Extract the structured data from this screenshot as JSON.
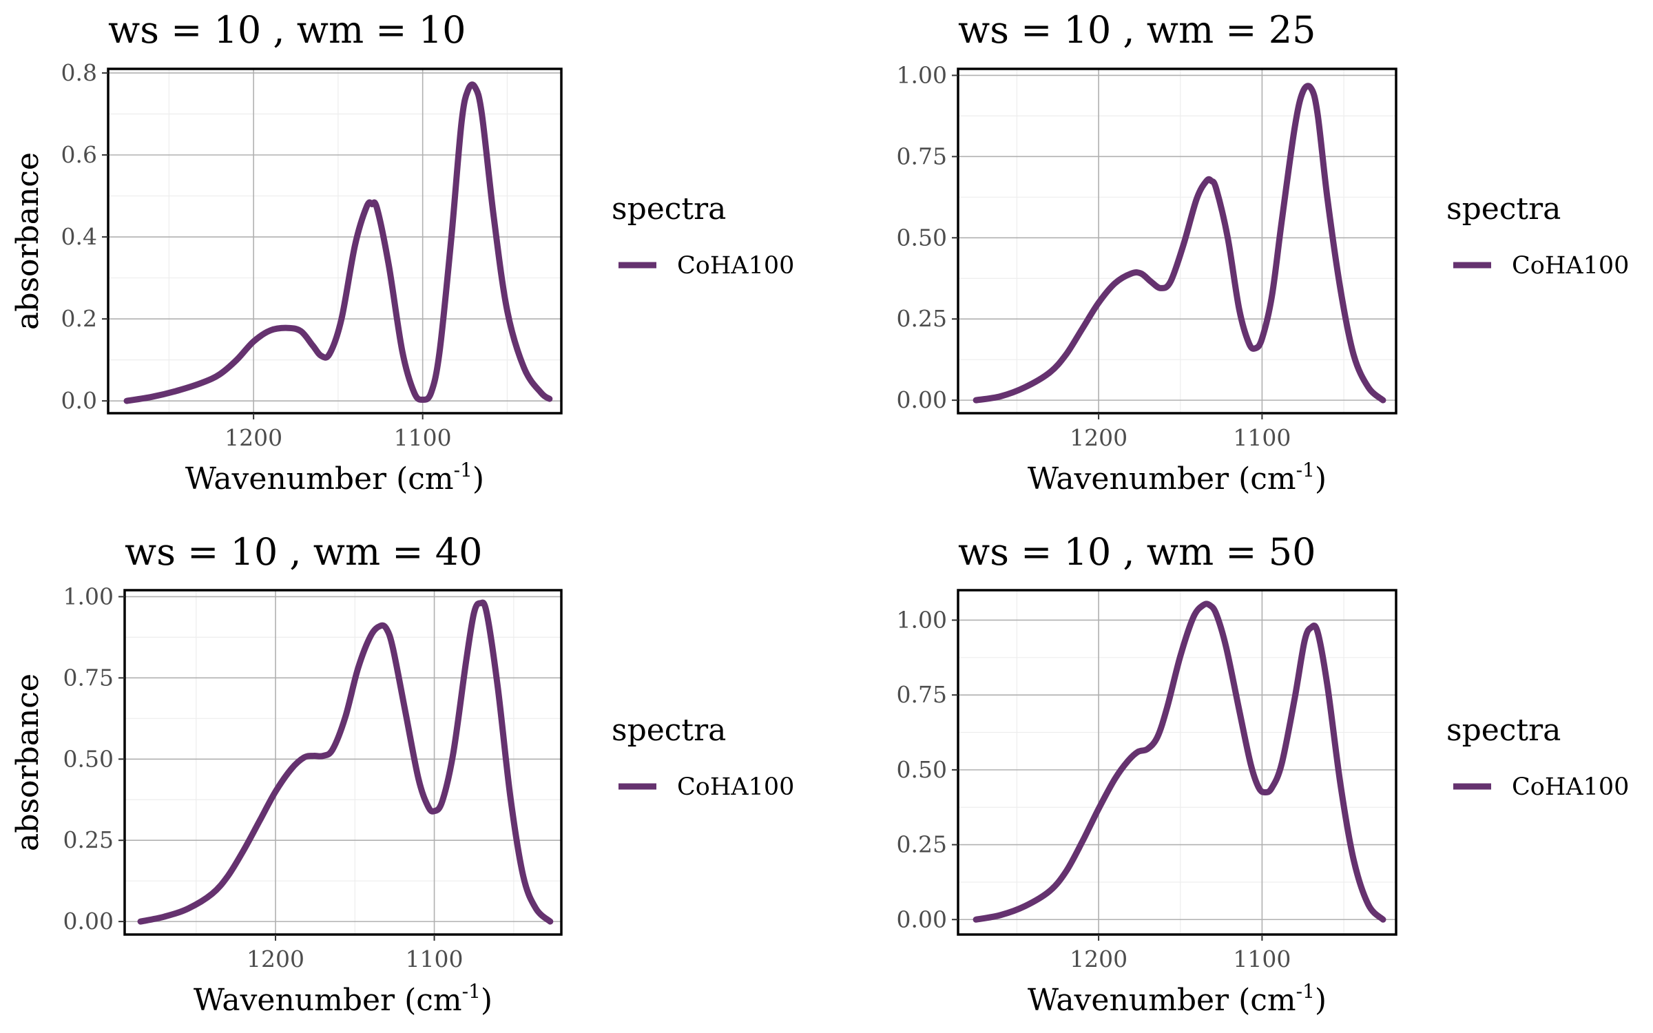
{
  "legend": {
    "title": "spectra",
    "label": "CoHA100"
  },
  "colors": {
    "line": "#65326f",
    "major_grid": "#b0b0b0",
    "minor_grid": "#ededed",
    "panel_border": "#000000"
  },
  "chart_data": [
    {
      "type": "line",
      "title": "ws = 10 , wm = 10",
      "xlabel": "Wavenumber (cm",
      "xlabel_sup": "-1",
      "xlabel_close": ")",
      "ylabel": "absorbance",
      "x_reversed": true,
      "xlim": [
        1286,
        1018
      ],
      "ylim": [
        -0.03,
        0.81
      ],
      "xticks": [
        {
          "value": 1200,
          "label": "1200"
        },
        {
          "value": 1100,
          "label": "1100"
        }
      ],
      "yticks": [
        {
          "value": 0.0,
          "label": "0.0"
        },
        {
          "value": 0.2,
          "label": "0.2"
        },
        {
          "value": 0.4,
          "label": "0.4"
        },
        {
          "value": 0.6,
          "label": "0.6"
        },
        {
          "value": 0.8,
          "label": "0.8"
        }
      ],
      "grid": true,
      "legend_position": "right",
      "series": [
        {
          "name": "CoHA100",
          "x": [
            1275,
            1260,
            1245,
            1230,
            1220,
            1210,
            1200,
            1190,
            1180,
            1172,
            1165,
            1160,
            1155,
            1148,
            1140,
            1133,
            1130,
            1127,
            1120,
            1112,
            1105,
            1100,
            1095,
            1090,
            1083,
            1077,
            1073,
            1069,
            1065,
            1058,
            1050,
            1040,
            1030,
            1025
          ],
          "y": [
            0.0,
            0.01,
            0.025,
            0.045,
            0.065,
            0.1,
            0.145,
            0.172,
            0.178,
            0.17,
            0.135,
            0.11,
            0.115,
            0.2,
            0.38,
            0.475,
            0.48,
            0.47,
            0.33,
            0.12,
            0.02,
            0.003,
            0.02,
            0.12,
            0.4,
            0.68,
            0.76,
            0.765,
            0.7,
            0.45,
            0.22,
            0.08,
            0.02,
            0.005
          ]
        }
      ]
    },
    {
      "type": "line",
      "title": "ws = 10 , wm = 25",
      "xlabel": "Wavenumber (cm",
      "xlabel_sup": "-1",
      "xlabel_close": ")",
      "ylabel": "absorbance",
      "x_reversed": true,
      "xlim": [
        1286,
        1018
      ],
      "ylim": [
        -0.04,
        1.02
      ],
      "xticks": [
        {
          "value": 1200,
          "label": "1200"
        },
        {
          "value": 1100,
          "label": "1100"
        }
      ],
      "yticks": [
        {
          "value": 0.0,
          "label": "0.00"
        },
        {
          "value": 0.25,
          "label": "0.25"
        },
        {
          "value": 0.5,
          "label": "0.50"
        },
        {
          "value": 0.75,
          "label": "0.75"
        },
        {
          "value": 1.0,
          "label": "1.00"
        }
      ],
      "grid": true,
      "legend_position": "right",
      "series": [
        {
          "name": "CoHA100",
          "x": [
            1275,
            1260,
            1245,
            1230,
            1220,
            1210,
            1200,
            1190,
            1180,
            1174,
            1168,
            1162,
            1156,
            1148,
            1140,
            1134,
            1131,
            1128,
            1121,
            1114,
            1108,
            1104,
            1100,
            1094,
            1088,
            1080,
            1075,
            1070,
            1066,
            1060,
            1052,
            1044,
            1035,
            1026
          ],
          "y": [
            0.0,
            0.012,
            0.04,
            0.085,
            0.14,
            0.22,
            0.3,
            0.36,
            0.39,
            0.39,
            0.365,
            0.345,
            0.365,
            0.48,
            0.62,
            0.675,
            0.675,
            0.65,
            0.5,
            0.28,
            0.175,
            0.16,
            0.19,
            0.32,
            0.55,
            0.84,
            0.95,
            0.96,
            0.88,
            0.62,
            0.34,
            0.14,
            0.04,
            0.0
          ]
        }
      ]
    },
    {
      "type": "line",
      "title": "ws = 10 , wm = 40",
      "xlabel": "Wavenumber (cm",
      "xlabel_sup": "-1",
      "xlabel_close": ")",
      "ylabel": "absorbance",
      "x_reversed": true,
      "xlim": [
        1295,
        1020
      ],
      "ylim": [
        -0.04,
        1.02
      ],
      "xticks": [
        {
          "value": 1200,
          "label": "1200"
        },
        {
          "value": 1100,
          "label": "1100"
        }
      ],
      "yticks": [
        {
          "value": 0.0,
          "label": "0.00"
        },
        {
          "value": 0.25,
          "label": "0.25"
        },
        {
          "value": 0.5,
          "label": "0.50"
        },
        {
          "value": 0.75,
          "label": "0.75"
        },
        {
          "value": 1.0,
          "label": "1.00"
        }
      ],
      "grid": true,
      "legend_position": "right",
      "series": [
        {
          "name": "CoHA100",
          "x": [
            1285,
            1270,
            1255,
            1240,
            1230,
            1220,
            1210,
            1200,
            1190,
            1182,
            1176,
            1170,
            1164,
            1156,
            1148,
            1140,
            1134,
            1130,
            1126,
            1118,
            1110,
            1104,
            1100,
            1095,
            1088,
            1080,
            1075,
            1071,
            1067,
            1060,
            1052,
            1044,
            1036,
            1027
          ],
          "y": [
            0.0,
            0.015,
            0.04,
            0.085,
            0.14,
            0.22,
            0.31,
            0.4,
            0.47,
            0.505,
            0.51,
            0.51,
            0.53,
            0.63,
            0.78,
            0.88,
            0.91,
            0.9,
            0.84,
            0.64,
            0.44,
            0.355,
            0.34,
            0.37,
            0.52,
            0.8,
            0.95,
            0.98,
            0.95,
            0.72,
            0.38,
            0.14,
            0.04,
            0.0
          ]
        }
      ]
    },
    {
      "type": "line",
      "title": "ws = 10 , wm = 50",
      "xlabel": "Wavenumber (cm",
      "xlabel_sup": "-1",
      "xlabel_close": ")",
      "ylabel": "absorbance",
      "x_reversed": true,
      "xlim": [
        1286,
        1018
      ],
      "ylim": [
        -0.05,
        1.1
      ],
      "xticks": [
        {
          "value": 1200,
          "label": "1200"
        },
        {
          "value": 1100,
          "label": "1100"
        }
      ],
      "yticks": [
        {
          "value": 0.0,
          "label": "0.00"
        },
        {
          "value": 0.25,
          "label": "0.25"
        },
        {
          "value": 0.5,
          "label": "0.50"
        },
        {
          "value": 0.75,
          "label": "0.75"
        },
        {
          "value": 1.0,
          "label": "1.00"
        }
      ],
      "grid": true,
      "legend_position": "right",
      "series": [
        {
          "name": "CoHA100",
          "x": [
            1275,
            1260,
            1245,
            1230,
            1220,
            1210,
            1200,
            1190,
            1182,
            1176,
            1170,
            1164,
            1158,
            1150,
            1142,
            1136,
            1132,
            1128,
            1122,
            1114,
            1107,
            1102,
            1098,
            1094,
            1088,
            1080,
            1074,
            1070,
            1066,
            1060,
            1052,
            1044,
            1035,
            1026
          ],
          "y": [
            0.0,
            0.015,
            0.045,
            0.095,
            0.16,
            0.26,
            0.37,
            0.47,
            0.53,
            0.56,
            0.57,
            0.61,
            0.71,
            0.88,
            1.01,
            1.05,
            1.05,
            1.02,
            0.91,
            0.7,
            0.52,
            0.44,
            0.425,
            0.44,
            0.52,
            0.74,
            0.93,
            0.975,
            0.96,
            0.78,
            0.45,
            0.2,
            0.05,
            0.0
          ]
        }
      ]
    }
  ]
}
